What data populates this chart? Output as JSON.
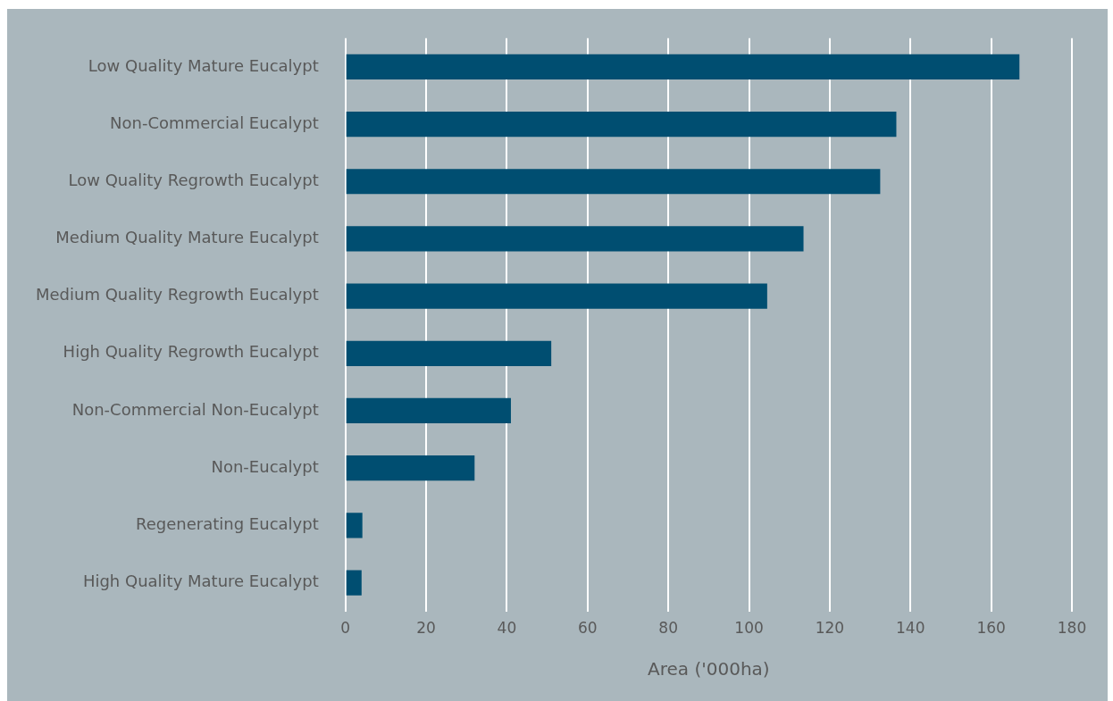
{
  "chart_data": {
    "type": "bar",
    "orientation": "horizontal",
    "xlabel": "Area ('000ha)",
    "categories": [
      "Low Quality Mature Eucalypt",
      "Non-Commercial Eucalypt",
      "Low Quality Regrowth Eucalypt",
      "Medium Quality Mature Eucalypt",
      "Medium Quality Regrowth Eucalypt",
      "High Quality Regrowth Eucalypt",
      "Non-Commercial Non-Eucalypt",
      "Non-Eucalypt",
      "Regenerating Eucalypt",
      "High Quality Mature Eucalypt"
    ],
    "values": [
      167,
      136.5,
      132.5,
      113.5,
      104.5,
      51,
      41,
      32,
      4.2,
      4
    ],
    "color": "#004e71",
    "xlim": [
      0,
      180
    ],
    "xticks": [
      0,
      20,
      40,
      60,
      80,
      100,
      120,
      140,
      160,
      180
    ],
    "grid": "x",
    "legend": false
  }
}
